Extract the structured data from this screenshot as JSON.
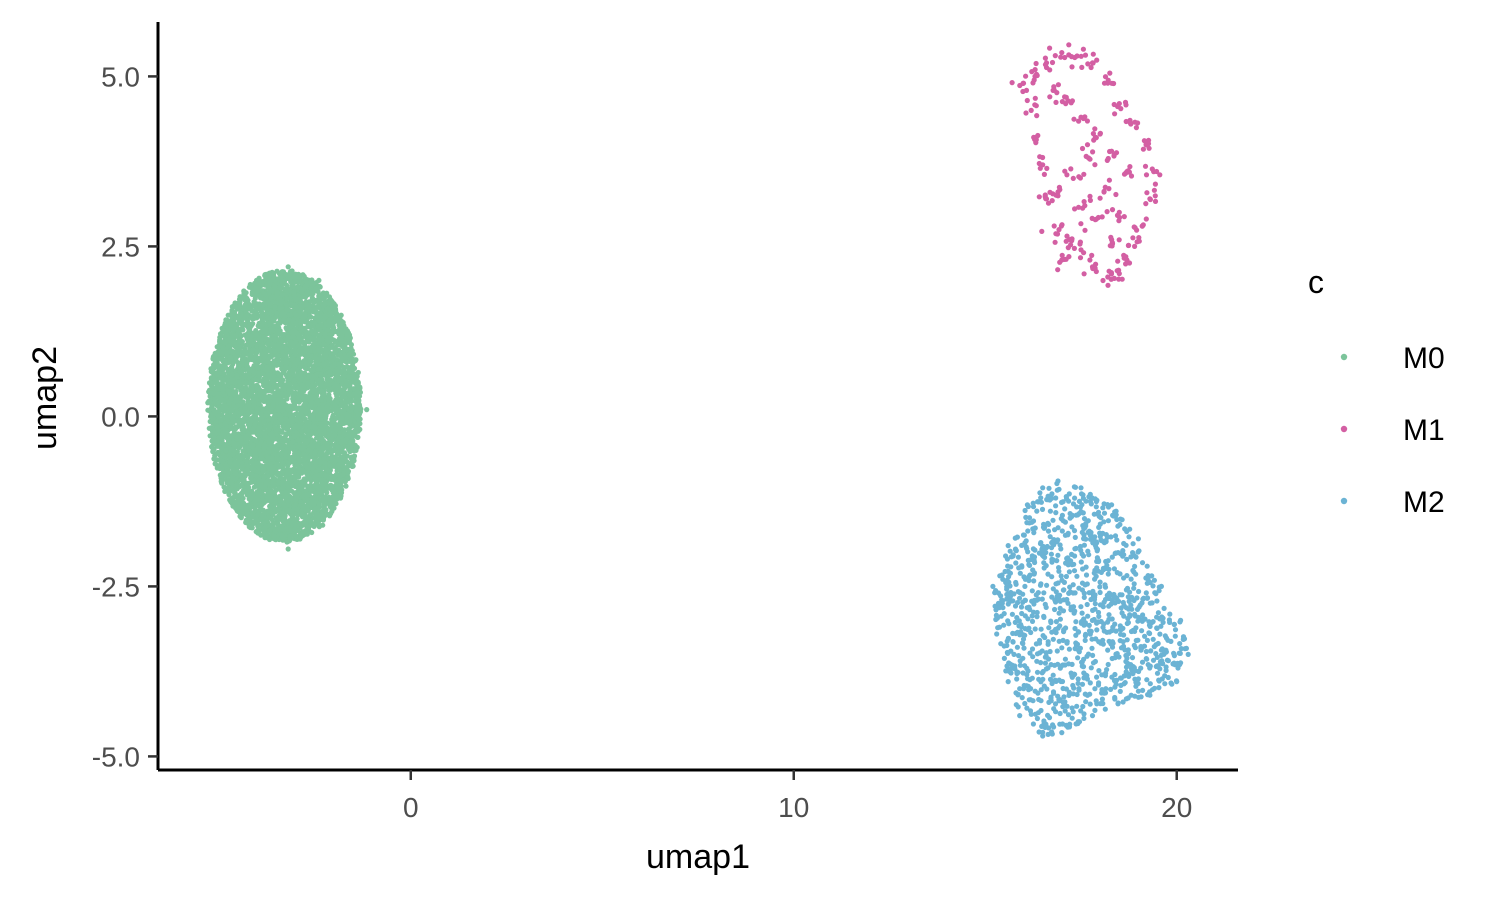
{
  "chart_data": {
    "type": "scatter",
    "title": "",
    "xlabel": "umap1",
    "ylabel": "umap2",
    "xlim": [
      -6.6,
      21.6
    ],
    "ylim": [
      -5.2,
      5.8
    ],
    "x_ticks": [
      0,
      10,
      20
    ],
    "x_tick_labels": [
      "0",
      "10",
      "20"
    ],
    "y_ticks": [
      -5,
      -2.5,
      0,
      2.5,
      5
    ],
    "y_tick_labels": [
      "-5.0",
      "-2.5",
      "0.0",
      "2.5",
      "5.0"
    ],
    "grid": false,
    "legend": {
      "title": "c",
      "position": "right"
    },
    "series": [
      {
        "name": "M0",
        "color": "#7CC49B",
        "cluster": {
          "shape": "ellipse",
          "center": [
            -3.3,
            0.15
          ],
          "radius": [
            2.0,
            2.0
          ],
          "n_points": 6000
        },
        "points": [
          [
            -3.2,
            2.2
          ],
          [
            -3.2,
            -1.95
          ],
          [
            -5.3,
            0.2
          ],
          [
            -1.15,
            0.1
          ],
          [
            -2.4,
            2.0
          ],
          [
            -4.2,
            1.9
          ],
          [
            -4.5,
            -1.4
          ],
          [
            -2.3,
            -1.6
          ]
        ]
      },
      {
        "name": "M1",
        "color": "#D35FA3",
        "points": [
          [
            17.0,
            5.35
          ],
          [
            17.4,
            5.3
          ],
          [
            17.8,
            5.2
          ],
          [
            18.2,
            4.9
          ],
          [
            18.5,
            4.6
          ],
          [
            18.8,
            4.3
          ],
          [
            19.2,
            4.0
          ],
          [
            19.4,
            3.6
          ],
          [
            19.3,
            3.2
          ],
          [
            19.1,
            2.8
          ],
          [
            18.9,
            2.5
          ],
          [
            18.7,
            2.3
          ],
          [
            18.5,
            2.1
          ],
          [
            18.2,
            2.05
          ],
          [
            17.8,
            2.2
          ],
          [
            17.5,
            2.45
          ],
          [
            17.2,
            2.6
          ],
          [
            17.0,
            2.3
          ],
          [
            16.8,
            2.8
          ],
          [
            16.6,
            3.2
          ],
          [
            16.5,
            3.7
          ],
          [
            16.3,
            4.1
          ],
          [
            16.2,
            4.5
          ],
          [
            16.0,
            4.9
          ],
          [
            16.3,
            5.0
          ],
          [
            16.6,
            5.2
          ],
          [
            16.8,
            4.8
          ],
          [
            17.1,
            4.6
          ],
          [
            17.5,
            4.4
          ],
          [
            17.9,
            4.1
          ],
          [
            18.3,
            3.9
          ],
          [
            18.7,
            3.6
          ],
          [
            17.7,
            3.8
          ],
          [
            17.3,
            3.5
          ],
          [
            16.9,
            3.3
          ],
          [
            18.1,
            3.3
          ],
          [
            18.5,
            3.0
          ],
          [
            17.9,
            2.9
          ],
          [
            17.6,
            3.1
          ],
          [
            18.3,
            2.6
          ]
        ]
      },
      {
        "name": "M2",
        "color": "#6BB3D4",
        "cluster": {
          "shape": "blob",
          "center": [
            17.6,
            -2.9
          ],
          "n_points": 1100
        },
        "points": [
          [
            16.9,
            -0.95
          ],
          [
            17.5,
            -1.05
          ],
          [
            18.3,
            -1.3
          ],
          [
            19.0,
            -1.8
          ],
          [
            19.6,
            -2.5
          ],
          [
            20.1,
            -3.0
          ],
          [
            20.3,
            -3.5
          ],
          [
            20.0,
            -3.9
          ],
          [
            19.3,
            -4.1
          ],
          [
            18.6,
            -4.2
          ],
          [
            17.8,
            -4.4
          ],
          [
            17.0,
            -4.65
          ],
          [
            16.5,
            -4.7
          ],
          [
            15.9,
            -4.4
          ],
          [
            15.6,
            -3.9
          ],
          [
            15.3,
            -3.2
          ],
          [
            15.2,
            -2.5
          ],
          [
            15.6,
            -1.9
          ],
          [
            16.1,
            -1.3
          ],
          [
            16.5,
            -1.05
          ]
        ]
      }
    ]
  }
}
